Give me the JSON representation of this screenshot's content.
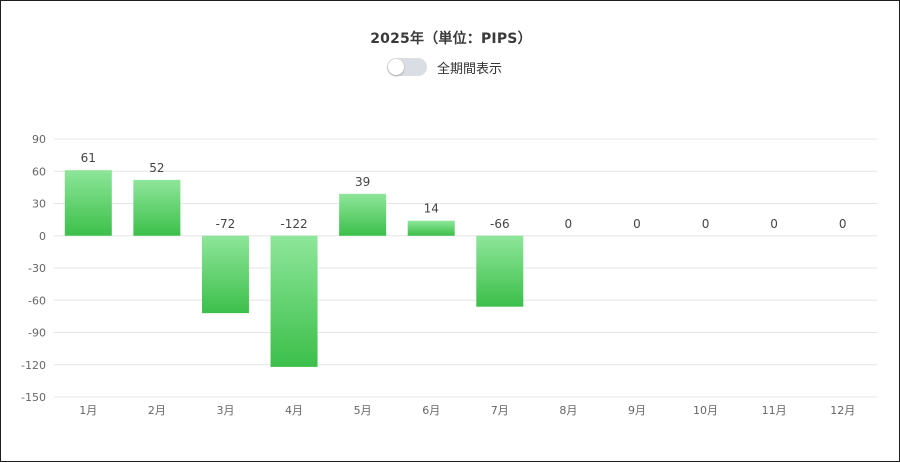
{
  "title": "2025年（単位：PIPS）",
  "toggle": {
    "label": "全期間表示",
    "checked": false
  },
  "colors": {
    "bar_top": "#8ee69a",
    "bar_bottom": "#3cbf4a",
    "grid": "#e6e6e6",
    "axis_text": "#666666"
  },
  "chart_data": {
    "type": "bar",
    "title": "2025年（単位：PIPS）",
    "xlabel": "",
    "ylabel": "",
    "categories": [
      "1月",
      "2月",
      "3月",
      "4月",
      "5月",
      "6月",
      "7月",
      "8月",
      "9月",
      "10月",
      "11月",
      "12月"
    ],
    "values": [
      61,
      52,
      -72,
      -122,
      39,
      14,
      -66,
      0,
      0,
      0,
      0,
      0
    ],
    "ylim": [
      -150,
      90
    ],
    "yticks": [
      90,
      60,
      30,
      0,
      -30,
      -60,
      -90,
      -120,
      -150
    ],
    "grid": true,
    "data_labels": true
  }
}
